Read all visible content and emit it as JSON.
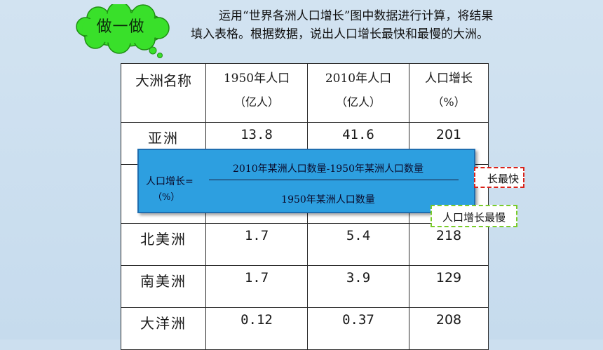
{
  "badge": {
    "label": "做一做"
  },
  "instruction": "运用“世界各洲人口增长”图中数据进行计算，将结果填入表格。根据数据，说出人口增长最快和最慢的大洲。",
  "table": {
    "headers": [
      {
        "main": "大洲名称",
        "sub": ""
      },
      {
        "main": "1950年人口",
        "sub": "（亿人）"
      },
      {
        "main": "2010年人口",
        "sub": "（亿人）"
      },
      {
        "main": "人口增长",
        "sub": "（%）"
      }
    ],
    "rows": [
      {
        "name": "亚洲",
        "pop1950": "13.8",
        "pop2010": "41.6",
        "growth": "201"
      },
      {
        "name": "北美洲",
        "pop1950": "1.7",
        "pop2010": "5.4",
        "growth": "218"
      },
      {
        "name": "南美洲",
        "pop1950": "1.7",
        "pop2010": "3.9",
        "growth": "129"
      },
      {
        "name": "大洋洲",
        "pop1950": "0.12",
        "pop2010": "0.37",
        "growth": "208"
      }
    ]
  },
  "formula": {
    "label": "人口增长=",
    "unit": "（%）",
    "numerator": "2010年某洲人口数量-1950年某洲人口数量",
    "denominator": "1950年某洲人口数量"
  },
  "notes": {
    "fastest_visible": "长最快",
    "slowest": "人口增长最慢"
  },
  "colors": {
    "formula_bg": "#2d9fe0",
    "fast_border": "#d9221a",
    "slow_border": "#7acc2a",
    "cloud": "#39e02a"
  }
}
